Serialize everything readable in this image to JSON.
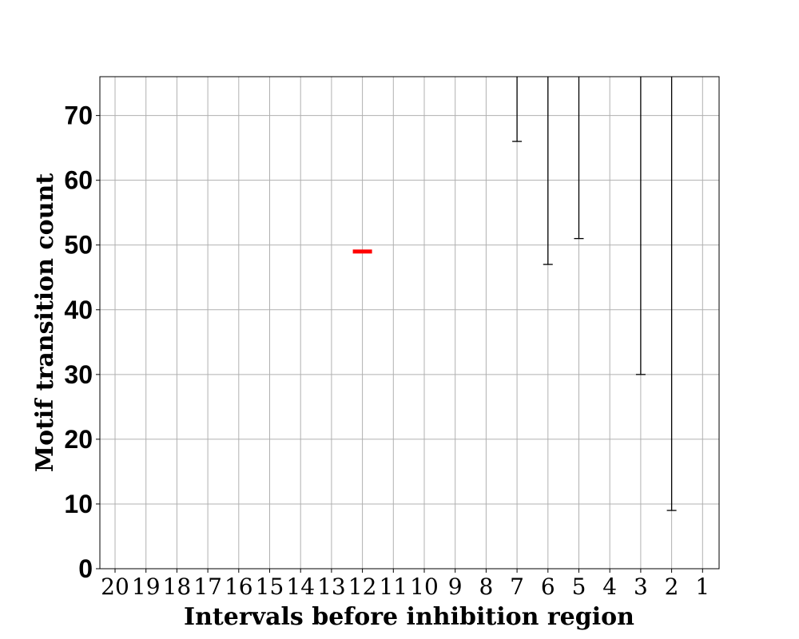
{
  "chart_data": {
    "type": "errorbar",
    "title": "",
    "xlabel": "Intervals before inhibition region",
    "ylabel": "Motif transition count",
    "x_tick_labels": [
      "20",
      "19",
      "18",
      "17",
      "16",
      "15",
      "14",
      "13",
      "12",
      "11",
      "10",
      "9",
      "8",
      "7",
      "6",
      "5",
      "4",
      "3",
      "2",
      "1"
    ],
    "y_ticks": [
      0,
      10,
      20,
      30,
      40,
      50,
      60,
      70
    ],
    "ylim": [
      0,
      76
    ],
    "grid": true,
    "colors": {
      "mean_marker": "#ff0000",
      "error_bar": "#000000",
      "grid": "#b0b0b0"
    },
    "mean_markers": [
      {
        "x": "12",
        "y": 49
      }
    ],
    "error_bars": [
      {
        "x": "7",
        "low": 66,
        "high": 76
      },
      {
        "x": "6",
        "low": 47,
        "high": 76
      },
      {
        "x": "5",
        "low": 51,
        "high": 76
      },
      {
        "x": "3",
        "low": 30,
        "high": 76
      },
      {
        "x": "2",
        "low": 9,
        "high": 76
      }
    ]
  }
}
